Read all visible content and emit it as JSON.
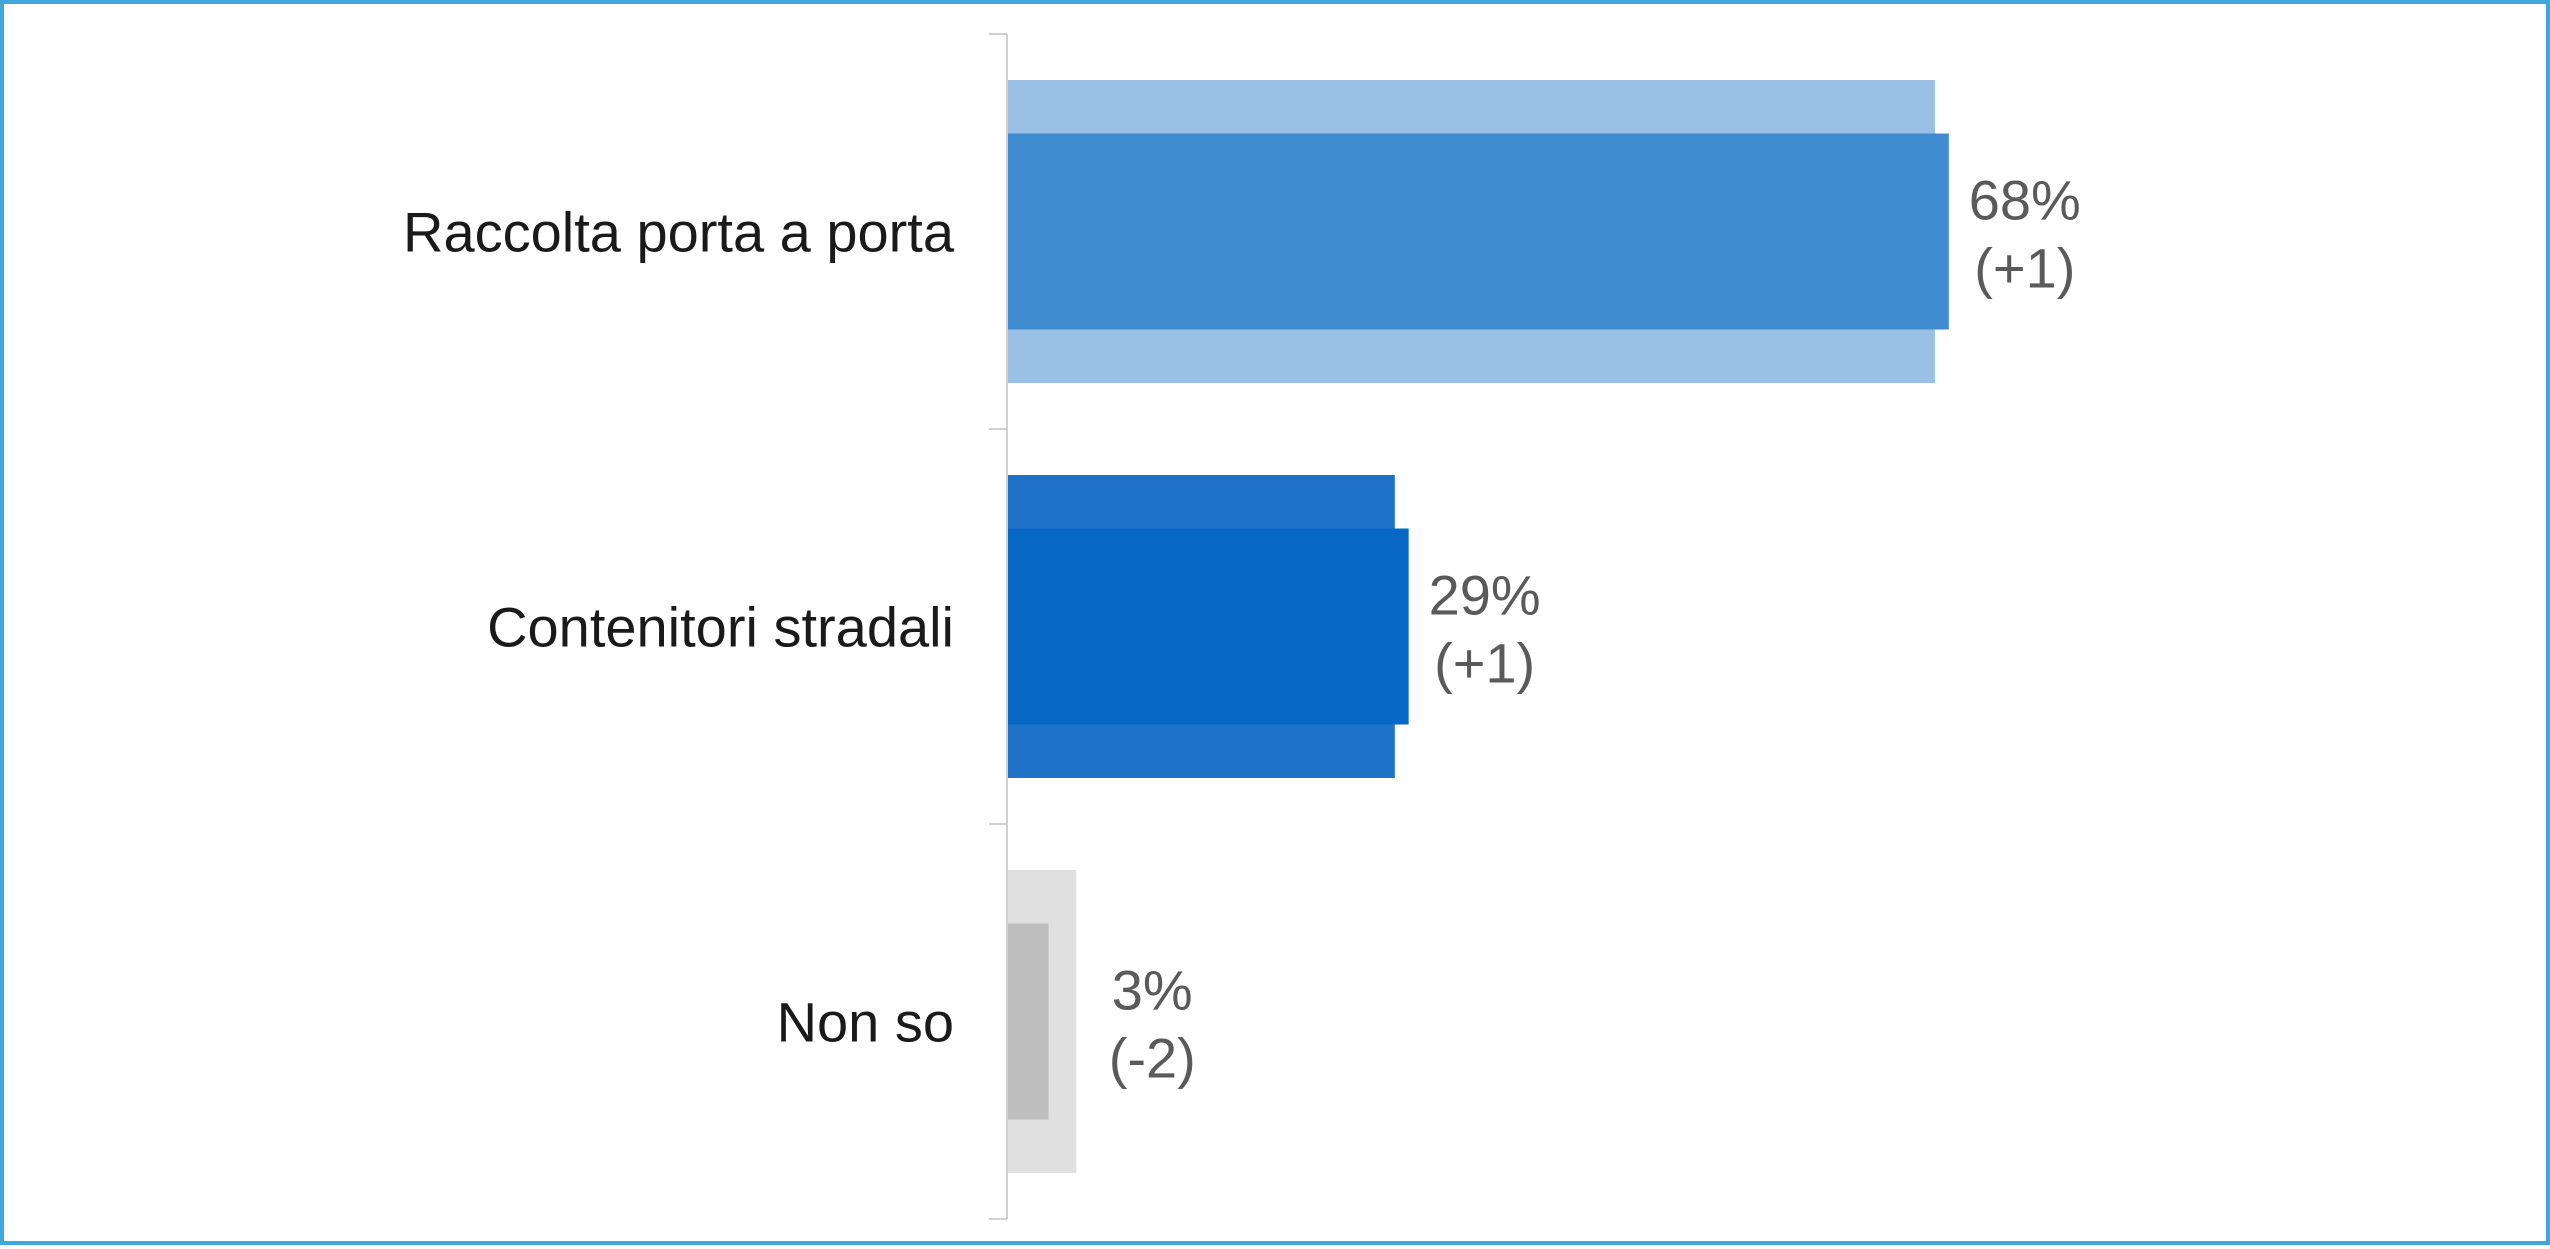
{
  "chart_data": {
    "type": "bar",
    "orientation": "horizontal",
    "categories": [
      "Raccolta porta a porta",
      "Contenitori stradali",
      "Non so"
    ],
    "series": [
      {
        "values": [
          68,
          29,
          3
        ]
      },
      {
        "values": [
          67,
          28,
          5
        ]
      }
    ],
    "value_labels": [
      "68%",
      "29%",
      "3%"
    ],
    "change_labels": [
      "(+1)",
      "(+1)",
      "(-2)"
    ],
    "xlim": [
      0,
      100
    ],
    "grid": false,
    "legend": "none",
    "colors": {
      "current": [
        "#3f8bd0",
        "#0668c4",
        "#bebebe"
      ],
      "previous": [
        "#9bc0e6",
        "#1e73c8",
        "#e0e0e0"
      ],
      "axis": "#d0d0d0",
      "frame": "#3fa7dc"
    }
  }
}
